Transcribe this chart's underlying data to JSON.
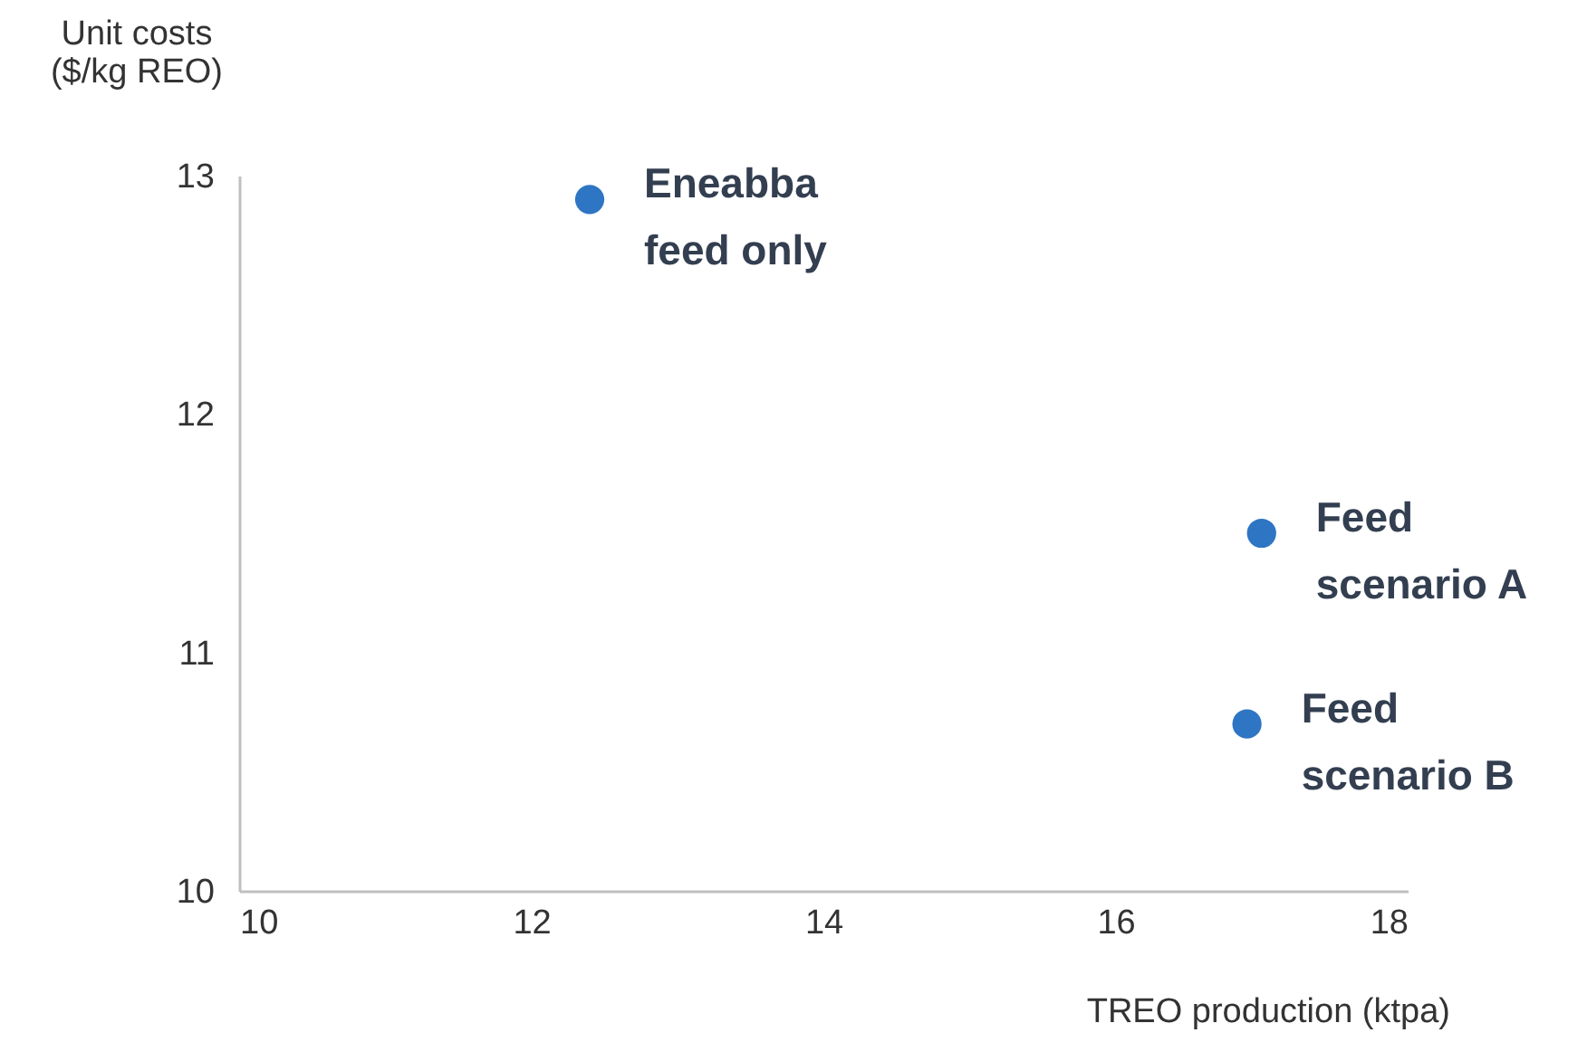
{
  "chart_data": {
    "type": "scatter",
    "x": [
      12.4,
      17.0,
      16.9
    ],
    "values": [
      12.9,
      11.5,
      10.7
    ],
    "color": "#2e75c4",
    "marker": "circle",
    "xlim": [
      10,
      18
    ],
    "xticks": [
      {
        "value": 10,
        "label": "10"
      },
      {
        "value": 12,
        "label": "12"
      },
      {
        "value": 14,
        "label": "14"
      },
      {
        "value": 16,
        "label": "16"
      },
      {
        "value": 18,
        "label": "18"
      }
    ],
    "ylim": [
      10,
      13
    ],
    "yticks": [
      {
        "value": 10,
        "label": "10"
      },
      {
        "value": 11,
        "label": "11"
      },
      {
        "value": 12,
        "label": "12"
      },
      {
        "value": 13,
        "label": "13"
      }
    ],
    "xlabel": "TREO production (ktpa)",
    "ylabel": "Unit costs\n($/kg REO)",
    "grid": false,
    "annotations": [
      {
        "text": "Eneabba\nfeed only",
        "x": 12.4,
        "y": 12.9
      },
      {
        "text": "Feed\nscenario A",
        "x": 17.0,
        "y": 11.5
      },
      {
        "text": "Feed\nscenario B",
        "x": 16.9,
        "y": 10.7
      }
    ]
  }
}
